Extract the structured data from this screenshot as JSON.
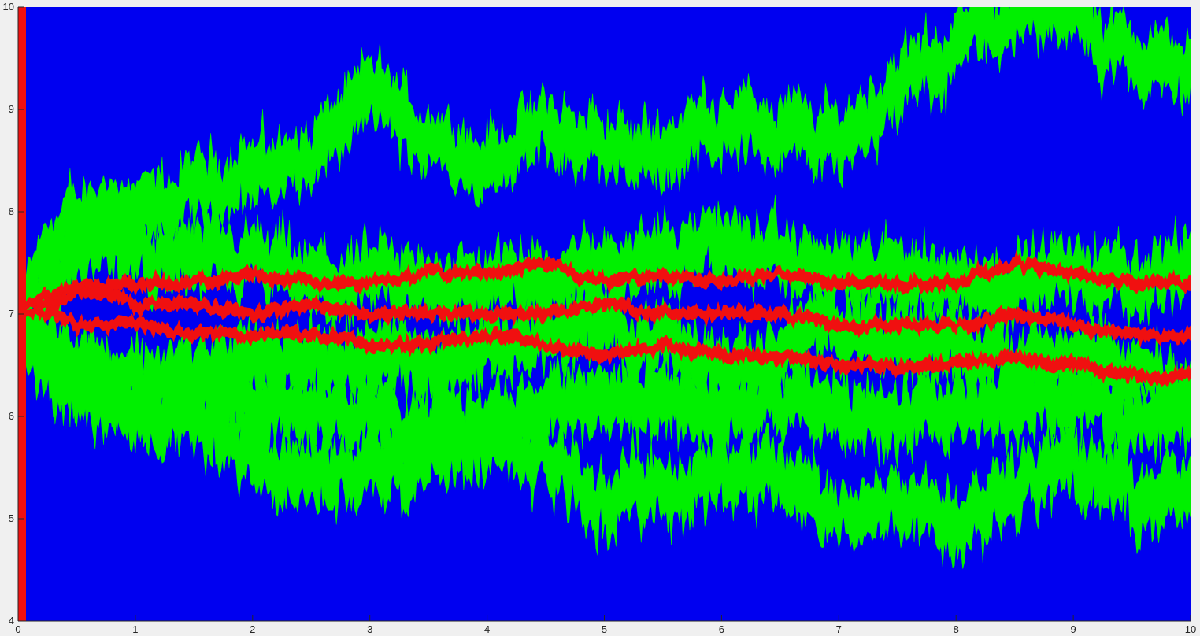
{
  "chart_data": {
    "type": "line",
    "title": "",
    "xlabel": "",
    "ylabel": "",
    "xlim": [
      0,
      10
    ],
    "ylim": [
      4,
      10
    ],
    "x_ticks": [
      "0",
      "1",
      "2",
      "3",
      "4",
      "5",
      "6",
      "7",
      "8",
      "9",
      "10"
    ],
    "y_ticks": [
      "4",
      "5",
      "6",
      "7",
      "8",
      "9",
      "10"
    ],
    "grid": false,
    "legend": "none",
    "colors": {
      "band_fill": "#0000f0",
      "outer_paths": "#00f000",
      "inner_paths": "#f01010",
      "axes_background": "#ffffff",
      "figure_background": "#f0f0f0",
      "axis_color": "#262626"
    },
    "series": [
      {
        "role": "envelope",
        "color": "#0000f0",
        "x": [
          0,
          0.05,
          0.1,
          0.2,
          0.3,
          0.5,
          0.8,
          1,
          2,
          3,
          4,
          5,
          6,
          7,
          8,
          9,
          10
        ],
        "upper": [
          10,
          10,
          10,
          10,
          10,
          10,
          10,
          10,
          10,
          10,
          10,
          10,
          10,
          10,
          10,
          10,
          10
        ],
        "lower": [
          4,
          4,
          4,
          4,
          4,
          4,
          4,
          4,
          4,
          4,
          4,
          4,
          4,
          4,
          4,
          4,
          4
        ]
      },
      {
        "role": "outer",
        "color": "#00f000",
        "x": [
          0,
          0.1,
          0.3,
          0.5,
          0.8,
          1,
          1.5,
          2,
          2.5,
          3,
          3.5,
          4,
          4.5,
          5,
          5.5,
          6,
          6.5,
          7,
          7.5,
          8,
          8.5,
          9,
          9.5,
          10
        ],
        "y": [
          7.0,
          7.3,
          7.7,
          7.9,
          8.1,
          7.9,
          8.2,
          8.4,
          8.5,
          9.2,
          8.7,
          8.5,
          8.8,
          8.6,
          8.6,
          8.9,
          8.8,
          8.7,
          9.2,
          9.6,
          10.0,
          9.9,
          9.5,
          9.4
        ]
      },
      {
        "role": "outer",
        "color": "#00f000",
        "x": [
          0,
          0.1,
          0.3,
          0.5,
          0.8,
          1,
          1.5,
          2,
          2.5,
          3,
          3.5,
          4,
          4.5,
          5,
          5.5,
          6,
          6.5,
          7,
          7.5,
          8,
          8.5,
          9,
          9.5,
          10
        ],
        "y": [
          7.0,
          7.2,
          7.4,
          7.6,
          7.7,
          7.6,
          7.5,
          7.5,
          7.3,
          7.3,
          7.3,
          7.3,
          7.3,
          7.5,
          7.6,
          7.7,
          7.5,
          7.4,
          7.4,
          7.3,
          7.3,
          7.4,
          7.3,
          7.5
        ]
      },
      {
        "role": "outer",
        "color": "#00f000",
        "x": [
          0,
          0.1,
          0.3,
          0.5,
          0.8,
          1,
          1.5,
          2,
          2.5,
          3,
          3.5,
          4,
          4.5,
          5,
          5.5,
          6,
          6.5,
          7,
          7.5,
          8,
          8.5,
          9,
          9.5,
          10
        ],
        "y": [
          7.0,
          6.9,
          6.7,
          6.6,
          6.4,
          6.4,
          6.4,
          6.5,
          6.6,
          6.6,
          6.5,
          6.7,
          6.8,
          6.9,
          6.7,
          6.5,
          6.7,
          6.9,
          6.7,
          6.7,
          6.6,
          6.5,
          6.4,
          6.3
        ]
      },
      {
        "role": "outer",
        "color": "#00f000",
        "x": [
          0,
          0.1,
          0.3,
          0.5,
          0.8,
          1,
          1.5,
          2,
          2.5,
          3,
          3.5,
          4,
          4.5,
          5,
          5.5,
          6,
          6.5,
          7,
          7.5,
          8,
          8.5,
          9,
          9.5,
          10
        ],
        "y": [
          7.0,
          6.8,
          6.5,
          6.3,
          6.2,
          6.1,
          6.3,
          6.2,
          6.1,
          6.0,
          5.9,
          6.0,
          6.1,
          6.2,
          6.1,
          6.1,
          6.1,
          6.1,
          6.0,
          6.0,
          6.1,
          6.2,
          6.0,
          6.0
        ]
      },
      {
        "role": "outer",
        "color": "#00f000",
        "x": [
          0,
          0.1,
          0.3,
          0.5,
          0.8,
          1,
          1.5,
          2,
          2.5,
          3,
          3.5,
          4,
          4.5,
          5,
          5.5,
          6,
          6.5,
          7,
          7.5,
          8,
          8.5,
          9,
          9.5,
          10
        ],
        "y": [
          7.0,
          6.7,
          6.4,
          6.3,
          6.2,
          6.0,
          6.1,
          5.6,
          5.4,
          5.5,
          5.6,
          5.8,
          5.6,
          5.2,
          5.3,
          5.4,
          5.5,
          5.0,
          5.2,
          5.0,
          5.4,
          5.5,
          5.3,
          5.2
        ]
      },
      {
        "role": "inner",
        "color": "#f01010",
        "x": [
          0,
          0.1,
          0.3,
          0.5,
          0.8,
          1,
          1.5,
          2,
          2.5,
          3,
          3.5,
          4,
          4.5,
          5,
          5.5,
          6,
          6.5,
          7,
          7.5,
          8,
          8.5,
          9,
          9.5,
          10
        ],
        "y": [
          7.0,
          7.1,
          7.2,
          7.3,
          7.3,
          7.3,
          7.3,
          7.4,
          7.3,
          7.3,
          7.4,
          7.4,
          7.5,
          7.3,
          7.4,
          7.3,
          7.4,
          7.3,
          7.3,
          7.3,
          7.5,
          7.4,
          7.3,
          7.3
        ]
      },
      {
        "role": "inner",
        "color": "#f01010",
        "x": [
          0,
          0.1,
          0.3,
          0.5,
          0.8,
          1,
          1.5,
          2,
          2.5,
          3,
          3.5,
          4,
          4.5,
          5,
          5.5,
          6,
          6.5,
          7,
          7.5,
          8,
          8.5,
          9,
          9.5,
          10
        ],
        "y": [
          7.0,
          7.1,
          7.1,
          7.2,
          7.2,
          7.1,
          7.1,
          7.0,
          7.1,
          7.0,
          7.0,
          7.0,
          7.0,
          7.1,
          7.0,
          7.0,
          7.0,
          6.9,
          6.9,
          6.9,
          7.0,
          6.9,
          6.8,
          6.8
        ]
      },
      {
        "role": "inner",
        "color": "#f01010",
        "x": [
          0,
          0.1,
          0.3,
          0.5,
          0.8,
          1,
          1.5,
          2,
          2.5,
          3,
          3.5,
          4,
          4.5,
          5,
          5.5,
          6,
          6.5,
          7,
          7.5,
          8,
          8.5,
          9,
          9.5,
          10
        ],
        "y": [
          7.0,
          7.0,
          7.0,
          6.9,
          6.9,
          6.9,
          6.8,
          6.8,
          6.8,
          6.7,
          6.7,
          6.8,
          6.7,
          6.6,
          6.7,
          6.6,
          6.6,
          6.5,
          6.5,
          6.5,
          6.6,
          6.5,
          6.4,
          6.4
        ]
      }
    ]
  }
}
